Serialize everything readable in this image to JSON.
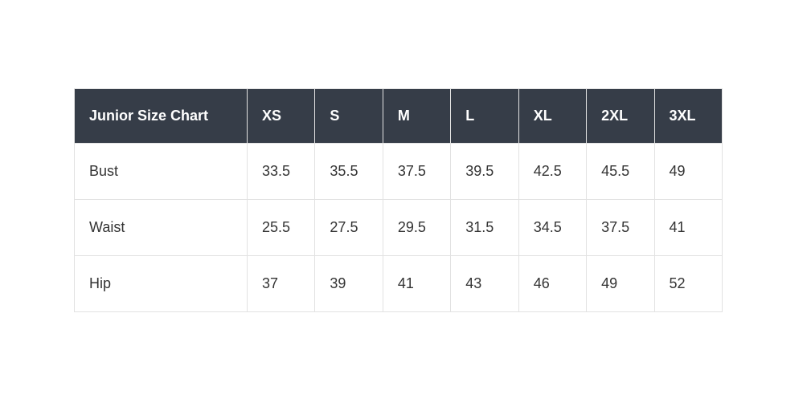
{
  "colors": {
    "header_bg": "#363d48",
    "header_text": "#ffffff",
    "body_bg": "#ffffff",
    "body_text": "#333333",
    "border": "#e2e2e2"
  },
  "chart_data": {
    "type": "table",
    "title": "Junior Size Chart",
    "columns": [
      "XS",
      "S",
      "M",
      "L",
      "XL",
      "2XL",
      "3XL"
    ],
    "rows": [
      {
        "label": "Bust",
        "values": [
          33.5,
          35.5,
          37.5,
          39.5,
          42.5,
          45.5,
          49
        ]
      },
      {
        "label": "Waist",
        "values": [
          25.5,
          27.5,
          29.5,
          31.5,
          34.5,
          37.5,
          41
        ]
      },
      {
        "label": "Hip",
        "values": [
          37,
          39,
          41,
          43,
          46,
          49,
          52
        ]
      }
    ]
  }
}
